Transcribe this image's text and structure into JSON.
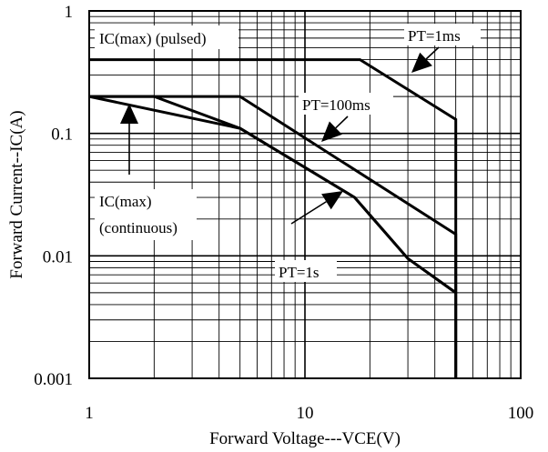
{
  "chart_data": {
    "type": "line",
    "title": "",
    "xlabel": "Forward Voltage---VCE(V)",
    "ylabel": "Forward Current--IC(A)",
    "x_scale": "log",
    "y_scale": "log",
    "xlim": [
      1,
      100
    ],
    "ylim": [
      0.001,
      1
    ],
    "x_ticks": [
      {
        "value": 1,
        "label": "1"
      },
      {
        "value": 10,
        "label": "10"
      },
      {
        "value": 100,
        "label": "100"
      }
    ],
    "y_ticks": [
      {
        "value": 1,
        "label": "1"
      },
      {
        "value": 0.1,
        "label": "0.1"
      },
      {
        "value": 0.01,
        "label": "0.01"
      },
      {
        "value": 0.001,
        "label": "0.001"
      }
    ],
    "grid": true,
    "legend": "none",
    "series": [
      {
        "name": "IC(max) (pulsed)",
        "x": [
          1,
          18,
          50,
          50
        ],
        "y": [
          0.4,
          0.4,
          0.13,
          0.001
        ]
      },
      {
        "name": "PT=1ms",
        "x": [
          1,
          5,
          50,
          50
        ],
        "y": [
          0.2,
          0.2,
          0.015,
          0.001
        ]
      },
      {
        "name": "PT=100ms",
        "x": [
          1,
          5,
          17,
          30,
          50
        ],
        "y": [
          0.2,
          0.11,
          0.03,
          0.0095,
          0.005
        ]
      },
      {
        "name": "PT=1s",
        "x": [
          1,
          2,
          5,
          17,
          30,
          50
        ],
        "y": [
          0.2,
          0.2,
          0.11,
          0.03,
          0.0095,
          0.005
        ]
      }
    ],
    "annotations": [
      {
        "text": "IC(max) (pulsed)"
      },
      {
        "text": "PT=1ms"
      },
      {
        "text": "PT=100ms"
      },
      {
        "text": "IC(max)"
      },
      {
        "text": "(continuous)"
      },
      {
        "text": "PT=1s"
      }
    ]
  }
}
